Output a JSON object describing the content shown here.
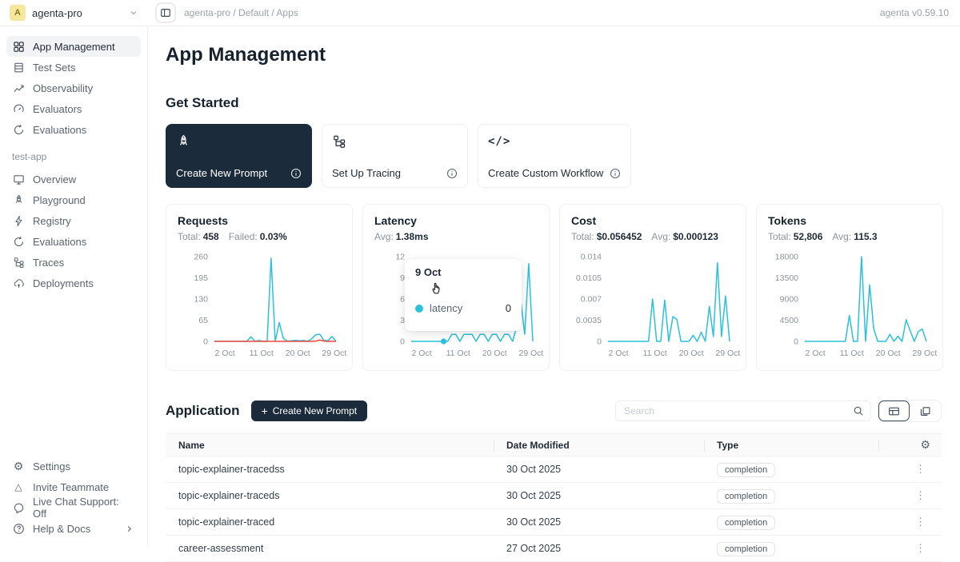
{
  "topbar": {
    "avatar": "A",
    "workspace": "agenta-pro",
    "breadcrumb": "agenta-pro / Default / Apps",
    "version": "agenta v0.59.10"
  },
  "sidebar": {
    "main_items": [
      {
        "icon": "grid-icon",
        "label": "App Management",
        "active": true
      },
      {
        "icon": "test-sets-icon",
        "label": "Test Sets",
        "active": false
      },
      {
        "icon": "line-chart-icon",
        "label": "Observability",
        "active": false
      },
      {
        "icon": "gauge-icon",
        "label": "Evaluators",
        "active": false
      },
      {
        "icon": "cycle-icon",
        "label": "Evaluations",
        "active": false
      }
    ],
    "app_group": {
      "label": "test-app",
      "items": [
        {
          "icon": "monitor-icon",
          "label": "Overview"
        },
        {
          "icon": "rocket-icon",
          "label": "Playground"
        },
        {
          "icon": "bolt-icon",
          "label": "Registry"
        },
        {
          "icon": "cycle-icon",
          "label": "Evaluations"
        },
        {
          "icon": "tree-icon",
          "label": "Traces"
        },
        {
          "icon": "cloud-icon",
          "label": "Deployments"
        }
      ]
    },
    "footer_items": [
      {
        "icon": "gear-icon",
        "label": "Settings",
        "chevron": false
      },
      {
        "icon": "triangle-icon",
        "label": "Invite Teammate",
        "chevron": false
      },
      {
        "icon": "chat-icon",
        "label": "Live Chat Support: Off",
        "chevron": false
      },
      {
        "icon": "help-icon",
        "label": "Help & Docs",
        "chevron": true
      }
    ]
  },
  "main": {
    "page_title": "App Management",
    "get_started": {
      "heading": "Get Started",
      "cards": [
        {
          "icon": "rocket-icon",
          "label": "Create New Prompt",
          "dark": true
        },
        {
          "icon": "tree-icon",
          "label": "Set Up Tracing",
          "dark": false
        },
        {
          "icon": "code-icon",
          "label": "Create Custom Workflow",
          "dark": false
        }
      ]
    },
    "application": {
      "heading": "Application",
      "create_button_label": "Create New Prompt",
      "search_placeholder": "Search"
    },
    "table": {
      "columns": [
        "Name",
        "Date Modified",
        "Type"
      ],
      "rows": [
        {
          "name": "topic-explainer-tracedss",
          "date": "30 Oct 2025",
          "type": "completion"
        },
        {
          "name": "topic-explainer-traceds",
          "date": "30 Oct 2025",
          "type": "completion"
        },
        {
          "name": "topic-explainer-traced",
          "date": "30 Oct 2025",
          "type": "completion"
        },
        {
          "name": "career-assessment",
          "date": "27 Oct 2025",
          "type": "completion"
        }
      ]
    }
  },
  "tooltip": {
    "date": "9 Oct",
    "series": "latency",
    "value": "0"
  },
  "colors": {
    "accent": "#2bc1dd",
    "danger": "#f5473f",
    "dark": "#1b2b3b"
  },
  "chart_data": [
    {
      "type": "line",
      "title": "Requests",
      "stats": [
        {
          "label": "Total:",
          "value": "458"
        },
        {
          "label": "Failed:",
          "value": "0.03%"
        }
      ],
      "x_unit": "day of October",
      "xticks": [
        "2 Oct",
        "11 Oct",
        "20 Oct",
        "29 Oct"
      ],
      "xtick_days": [
        2,
        11,
        20,
        29
      ],
      "yticks": [
        "0",
        "65",
        "130",
        "195",
        "260"
      ],
      "ylim": [
        0,
        260
      ],
      "series": [
        {
          "name": "requests",
          "color": "#2bc1dd",
          "values": [
            0,
            0,
            0,
            0,
            0,
            0,
            0,
            0,
            0,
            14,
            0,
            3,
            0,
            0,
            255,
            0,
            58,
            10,
            0,
            2,
            3,
            2,
            3,
            0,
            8,
            20,
            22,
            3,
            2,
            15,
            0
          ]
        },
        {
          "name": "failed",
          "color": "#f5473f",
          "values": [
            0,
            0,
            0,
            0,
            0,
            0,
            0,
            0,
            0,
            0,
            0,
            0,
            0,
            0,
            0,
            0,
            0,
            0,
            0,
            0,
            0,
            0,
            0,
            0,
            0,
            1,
            4,
            1,
            0,
            0,
            0
          ]
        }
      ]
    },
    {
      "type": "line",
      "title": "Latency",
      "stats": [
        {
          "label": "Avg:",
          "value": "1.38ms"
        }
      ],
      "x_unit": "day of October",
      "xticks": [
        "2 Oct",
        "11 Oct",
        "20 Oct",
        "29 Oct"
      ],
      "xtick_days": [
        2,
        11,
        20,
        29
      ],
      "yticks": [
        "0",
        "3",
        "6",
        "9",
        "12"
      ],
      "ylim": [
        0,
        12
      ],
      "dot": {
        "day": 9,
        "value": 0,
        "label": "9 Oct"
      },
      "series": [
        {
          "name": "latency",
          "color": "#2bc1dd",
          "values": [
            0,
            0,
            0,
            0,
            0,
            0,
            0,
            0,
            0,
            0,
            1,
            1,
            0,
            1,
            1,
            1,
            0,
            1,
            1,
            0,
            1,
            1,
            0,
            1,
            1,
            0,
            2,
            6,
            1,
            11,
            0
          ]
        }
      ]
    },
    {
      "type": "line",
      "title": "Cost",
      "stats": [
        {
          "label": "Total:",
          "value": "$0.056452"
        },
        {
          "label": "Avg:",
          "value": "$0.000123"
        }
      ],
      "x_unit": "day of October",
      "xticks": [
        "2 Oct",
        "11 Oct",
        "20 Oct",
        "29 Oct"
      ],
      "xtick_days": [
        2,
        11,
        20,
        29
      ],
      "yticks": [
        "0",
        "0.0035",
        "0.007",
        "0.0105",
        "0.014"
      ],
      "ylim": [
        0,
        0.014
      ],
      "series": [
        {
          "name": "cost",
          "color": "#2bc1dd",
          "values": [
            0,
            0,
            0,
            0,
            0,
            0,
            0,
            0,
            0,
            0,
            0,
            0.007,
            0,
            0,
            0.0068,
            0,
            0.0041,
            0.0036,
            0,
            0,
            0,
            0.001,
            0,
            0.0015,
            0,
            0.0058,
            0.0008,
            0.013,
            0.0008,
            0.0075,
            0
          ]
        }
      ]
    },
    {
      "type": "line",
      "title": "Tokens",
      "stats": [
        {
          "label": "Total:",
          "value": "52,806"
        },
        {
          "label": "Avg:",
          "value": "115.3"
        }
      ],
      "x_unit": "day of October",
      "xticks": [
        "2 Oct",
        "11 Oct",
        "20 Oct",
        "29 Oct"
      ],
      "xtick_days": [
        2,
        11,
        20,
        29
      ],
      "yticks": [
        "0",
        "4500",
        "9000",
        "13500",
        "18000"
      ],
      "ylim": [
        0,
        18000
      ],
      "series": [
        {
          "name": "tokens",
          "color": "#2bc1dd",
          "values": [
            0,
            0,
            0,
            0,
            0,
            0,
            0,
            0,
            0,
            0,
            0,
            5500,
            0,
            0,
            18000,
            0,
            12000,
            2700,
            0,
            0,
            0,
            1500,
            0,
            1100,
            0,
            4600,
            2300,
            0,
            2100,
            2600,
            0
          ]
        }
      ]
    }
  ]
}
